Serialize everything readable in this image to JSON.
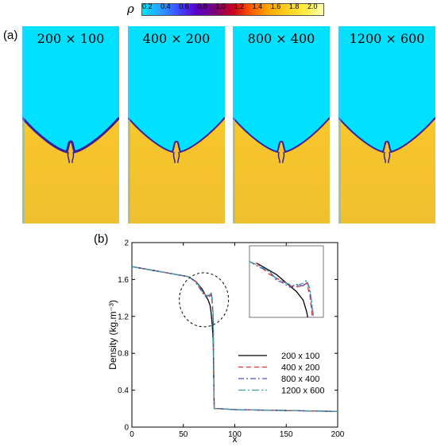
{
  "colorbar": {
    "symbol": "ρ",
    "ticks": [
      "0.2",
      "0.4",
      "0.6",
      "0.8",
      "1.0",
      "1.2",
      "1.4",
      "1.6",
      "1.8",
      "2.0"
    ],
    "colors": [
      "#00e4ff",
      "#2aa0ff",
      "#3d4cff",
      "#5a00c8",
      "#7a0078",
      "#c80020",
      "#ff5a00",
      "#ffa800",
      "#ffd020",
      "#ffee40",
      "#ffffb0"
    ]
  },
  "panel_a": {
    "label": "(a)",
    "simulations": [
      {
        "title": "200 × 100"
      },
      {
        "title": "400 × 200"
      },
      {
        "title": "800 × 400"
      },
      {
        "title": "1200 × 600"
      }
    ],
    "colors": {
      "light": "#00e1ff",
      "heavy": "#f7c62a",
      "interface": "#3a1f9c"
    }
  },
  "panel_b": {
    "label": "(b)"
  },
  "chart_data": {
    "type": "line",
    "xlabel": "x",
    "ylabel": "Density (kg.m⁻³)",
    "xlim": [
      0,
      200
    ],
    "ylim": [
      0,
      2
    ],
    "xticks": [
      "0",
      "50",
      "100",
      "150",
      "200"
    ],
    "yticks": [
      "0",
      "0.4",
      "0.8",
      "1.2",
      "1.6",
      "2"
    ],
    "legend_position": "lower-right",
    "series": [
      {
        "name": "200 x 100",
        "color": "#000000",
        "dash": "",
        "x": [
          0,
          20,
          40,
          55,
          62,
          68,
          72,
          74,
          76,
          77,
          78,
          79,
          80,
          85,
          100,
          150,
          200
        ],
        "y": [
          1.74,
          1.7,
          1.66,
          1.63,
          1.58,
          1.5,
          1.42,
          1.38,
          1.32,
          1.24,
          1.12,
          0.95,
          0.2,
          0.2,
          0.19,
          0.18,
          0.17
        ]
      },
      {
        "name": "400 x 200",
        "color": "#e03030",
        "dash": "6,4",
        "x": [
          0,
          20,
          40,
          55,
          62,
          66,
          70,
          73,
          76,
          77,
          78,
          79,
          80,
          85,
          100,
          150,
          200
        ],
        "y": [
          1.74,
          1.7,
          1.66,
          1.63,
          1.58,
          1.5,
          1.45,
          1.41,
          1.42,
          1.44,
          1.35,
          1.15,
          0.2,
          0.2,
          0.19,
          0.18,
          0.17
        ]
      },
      {
        "name": "800 x 400",
        "color": "#5050c0",
        "dash": "7,3,2,3",
        "x": [
          0,
          20,
          40,
          55,
          60,
          63,
          66,
          68,
          70,
          72,
          74,
          76,
          77,
          78,
          79,
          80,
          85,
          100,
          150,
          200
        ],
        "y": [
          1.74,
          1.7,
          1.66,
          1.63,
          1.59,
          1.55,
          1.52,
          1.46,
          1.44,
          1.41,
          1.43,
          1.42,
          1.46,
          1.38,
          1.2,
          0.2,
          0.2,
          0.19,
          0.18,
          0.17
        ]
      },
      {
        "name": "1200 x 600",
        "color": "#40a0a8",
        "dash": "9,3,2,3",
        "x": [
          0,
          20,
          40,
          55,
          60,
          63,
          66,
          68,
          70,
          72,
          74,
          76,
          77,
          78,
          79,
          80,
          85,
          100,
          150,
          200
        ],
        "y": [
          1.74,
          1.7,
          1.66,
          1.63,
          1.59,
          1.56,
          1.52,
          1.47,
          1.45,
          1.43,
          1.42,
          1.44,
          1.46,
          1.4,
          1.22,
          0.2,
          0.2,
          0.19,
          0.18,
          0.17
        ]
      }
    ]
  }
}
